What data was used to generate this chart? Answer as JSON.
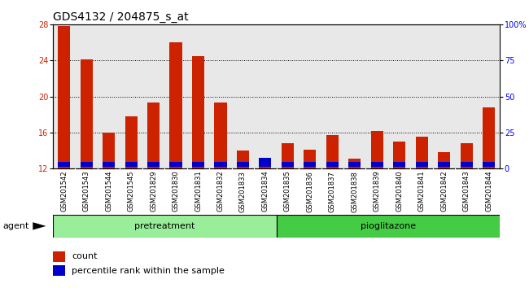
{
  "title": "GDS4132 / 204875_s_at",
  "samples": [
    "GSM201542",
    "GSM201543",
    "GSM201544",
    "GSM201545",
    "GSM201829",
    "GSM201830",
    "GSM201831",
    "GSM201832",
    "GSM201833",
    "GSM201834",
    "GSM201835",
    "GSM201836",
    "GSM201837",
    "GSM201838",
    "GSM201839",
    "GSM201840",
    "GSM201841",
    "GSM201842",
    "GSM201843",
    "GSM201844"
  ],
  "count_values": [
    27.8,
    24.1,
    16.0,
    17.8,
    19.3,
    26.0,
    24.5,
    19.3,
    14.0,
    12.5,
    14.8,
    14.1,
    15.7,
    13.1,
    16.2,
    15.0,
    15.5,
    13.8,
    14.8,
    18.8
  ],
  "blue_bottom": [
    12.2,
    12.2,
    12.2,
    12.2,
    12.2,
    12.2,
    12.2,
    12.2,
    12.2,
    12.2,
    12.2,
    12.2,
    12.2,
    12.2,
    12.2,
    12.2,
    12.2,
    12.2,
    12.2,
    12.2
  ],
  "blue_heights": [
    0.5,
    0.5,
    0.5,
    0.5,
    0.5,
    0.5,
    0.5,
    0.5,
    0.5,
    1.0,
    0.5,
    0.5,
    0.5,
    0.5,
    0.5,
    0.5,
    0.5,
    0.5,
    0.5,
    0.5
  ],
  "pretreatment_count": 10,
  "pioglitazone_count": 10,
  "ylim_left": [
    12,
    28
  ],
  "ylim_right": [
    0,
    100
  ],
  "yticks_left": [
    12,
    16,
    20,
    24,
    28
  ],
  "yticks_right": [
    0,
    25,
    50,
    75,
    100
  ],
  "ytick_labels_right": [
    "0",
    "25",
    "50",
    "75",
    "100%"
  ],
  "bar_color_red": "#cc2200",
  "bar_color_blue": "#0000cc",
  "pretreatment_color": "#99ee99",
  "pioglitazone_color": "#44cc44",
  "background_color": "#ffffff",
  "plot_bg_color": "#e8e8e8",
  "bar_width": 0.55,
  "title_fontsize": 10,
  "tick_fontsize": 7,
  "label_fontsize": 8
}
